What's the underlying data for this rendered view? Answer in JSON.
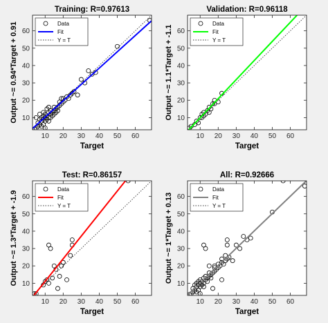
{
  "chart_data": [
    {
      "type": "scatter",
      "title": "Training: R=0.97613",
      "xlabel": "Target",
      "ylabel": "Output ~= 0.94*Target + 0.91",
      "xlim": [
        3,
        69
      ],
      "ylim": [
        3,
        69
      ],
      "xticks": [
        10,
        20,
        30,
        40,
        50,
        60
      ],
      "yticks": [
        10,
        20,
        30,
        40,
        50,
        60
      ],
      "fit": {
        "slope": 0.94,
        "intercept": 0.91,
        "color": "#0000ff"
      },
      "legend": {
        "entries": [
          "Data",
          "Fit",
          "Y = T"
        ],
        "placement": "top-left"
      },
      "points": [
        [
          4,
          3.5
        ],
        [
          5,
          4
        ],
        [
          6,
          5
        ],
        [
          6,
          7
        ],
        [
          7,
          6
        ],
        [
          7,
          9
        ],
        [
          8,
          5
        ],
        [
          8,
          8
        ],
        [
          8,
          10
        ],
        [
          9,
          6
        ],
        [
          9,
          9
        ],
        [
          9,
          11
        ],
        [
          10,
          4
        ],
        [
          10,
          8
        ],
        [
          10,
          10
        ],
        [
          10,
          12
        ],
        [
          11,
          9
        ],
        [
          11,
          11
        ],
        [
          12,
          10
        ],
        [
          12,
          13
        ],
        [
          12,
          8
        ],
        [
          13,
          12
        ],
        [
          13,
          14
        ],
        [
          14,
          11
        ],
        [
          14,
          13
        ],
        [
          15,
          14
        ],
        [
          15,
          16
        ],
        [
          16,
          15
        ],
        [
          16,
          13
        ],
        [
          17,
          16
        ],
        [
          18,
          17
        ],
        [
          18,
          19
        ],
        [
          19,
          18
        ],
        [
          20,
          19
        ],
        [
          20,
          21
        ],
        [
          21,
          20
        ],
        [
          22,
          22
        ],
        [
          23,
          21
        ],
        [
          24,
          23
        ],
        [
          25,
          24
        ],
        [
          26,
          25
        ],
        [
          28,
          23
        ],
        [
          30,
          32
        ],
        [
          32,
          30
        ],
        [
          34,
          37
        ],
        [
          36,
          35
        ],
        [
          38,
          36
        ],
        [
          50,
          51
        ],
        [
          68,
          66
        ],
        [
          5,
          10
        ],
        [
          7,
          12
        ],
        [
          11,
          15
        ],
        [
          13,
          10
        ],
        [
          15,
          12
        ],
        [
          17,
          14
        ],
        [
          19,
          21
        ],
        [
          9,
          13
        ],
        [
          12,
          16
        ]
      ]
    },
    {
      "type": "scatter",
      "title": "Validation: R=0.96118",
      "xlabel": "Target",
      "ylabel": "Output ~= 1.1*Target + -1.1",
      "xlim": [
        3,
        69
      ],
      "ylim": [
        3,
        69
      ],
      "xticks": [
        10,
        20,
        30,
        40,
        50,
        60
      ],
      "yticks": [
        10,
        20,
        30,
        40,
        50,
        60
      ],
      "fit": {
        "slope": 1.1,
        "intercept": -1.1,
        "color": "#00ff00"
      },
      "legend": {
        "entries": [
          "Data",
          "Fit",
          "Y = T"
        ],
        "placement": "top-left"
      },
      "points": [
        [
          4,
          4
        ],
        [
          5,
          5
        ],
        [
          7,
          6
        ],
        [
          8,
          8
        ],
        [
          9,
          7
        ],
        [
          10,
          10
        ],
        [
          11,
          12
        ],
        [
          12,
          11
        ],
        [
          12,
          13
        ],
        [
          13,
          12
        ],
        [
          14,
          14
        ],
        [
          15,
          13
        ],
        [
          16,
          15
        ],
        [
          17,
          18
        ],
        [
          18,
          18
        ],
        [
          18,
          20
        ],
        [
          20,
          19
        ],
        [
          22,
          24
        ],
        [
          15,
          16
        ],
        [
          11,
          10
        ]
      ]
    },
    {
      "type": "scatter",
      "title": "Test: R=0.86157",
      "xlabel": "Target",
      "ylabel": "Output ~= 1.3*Target + -1.9",
      "xlim": [
        3,
        69
      ],
      "ylim": [
        3,
        69
      ],
      "xticks": [
        10,
        20,
        30,
        40,
        50,
        60
      ],
      "yticks": [
        10,
        20,
        30,
        40,
        50,
        60
      ],
      "fit": {
        "slope": 1.3,
        "intercept": -1.9,
        "color": "#ff0000"
      },
      "legend": {
        "entries": [
          "Data",
          "Fit",
          "Y = T"
        ],
        "placement": "top-left"
      },
      "points": [
        [
          4,
          4
        ],
        [
          5,
          4
        ],
        [
          9,
          9
        ],
        [
          10,
          11
        ],
        [
          11,
          12
        ],
        [
          12,
          10
        ],
        [
          12,
          32
        ],
        [
          13,
          30
        ],
        [
          14,
          13
        ],
        [
          15,
          20
        ],
        [
          16,
          18
        ],
        [
          17,
          7
        ],
        [
          18,
          14
        ],
        [
          19,
          20
        ],
        [
          20,
          22
        ],
        [
          22,
          12
        ],
        [
          24,
          26
        ],
        [
          25,
          35
        ],
        [
          25,
          32
        ],
        [
          56,
          69
        ]
      ]
    },
    {
      "type": "scatter",
      "title": "All: R=0.92666",
      "xlabel": "Target",
      "ylabel": "Output ~= 1*Target + 0.13",
      "xlim": [
        3,
        69
      ],
      "ylim": [
        3,
        69
      ],
      "xticks": [
        10,
        20,
        30,
        40,
        50,
        60
      ],
      "yticks": [
        10,
        20,
        30,
        40,
        50,
        60
      ],
      "fit": {
        "slope": 1.0,
        "intercept": 0.13,
        "color": "#808080"
      },
      "legend": {
        "entries": [
          "Data",
          "Fit",
          "Y = T"
        ],
        "placement": "top-left"
      },
      "points": [
        [
          4,
          3.5
        ],
        [
          5,
          4
        ],
        [
          6,
          5
        ],
        [
          6,
          7
        ],
        [
          7,
          6
        ],
        [
          7,
          9
        ],
        [
          8,
          5
        ],
        [
          8,
          8
        ],
        [
          8,
          10
        ],
        [
          9,
          6
        ],
        [
          9,
          9
        ],
        [
          9,
          11
        ],
        [
          10,
          4
        ],
        [
          10,
          8
        ],
        [
          10,
          10
        ],
        [
          10,
          12
        ],
        [
          11,
          9
        ],
        [
          11,
          11
        ],
        [
          12,
          10
        ],
        [
          12,
          13
        ],
        [
          12,
          8
        ],
        [
          13,
          12
        ],
        [
          13,
          14
        ],
        [
          14,
          11
        ],
        [
          14,
          13
        ],
        [
          15,
          14
        ],
        [
          15,
          16
        ],
        [
          16,
          15
        ],
        [
          16,
          13
        ],
        [
          17,
          16
        ],
        [
          18,
          17
        ],
        [
          18,
          19
        ],
        [
          19,
          18
        ],
        [
          20,
          19
        ],
        [
          20,
          21
        ],
        [
          21,
          20
        ],
        [
          22,
          22
        ],
        [
          23,
          21
        ],
        [
          24,
          23
        ],
        [
          25,
          24
        ],
        [
          26,
          25
        ],
        [
          28,
          23
        ],
        [
          30,
          32
        ],
        [
          32,
          30
        ],
        [
          34,
          37
        ],
        [
          36,
          35
        ],
        [
          38,
          36
        ],
        [
          50,
          51
        ],
        [
          68,
          66
        ],
        [
          12,
          32
        ],
        [
          13,
          30
        ],
        [
          15,
          20
        ],
        [
          17,
          7
        ],
        [
          22,
          12
        ],
        [
          25,
          35
        ],
        [
          25,
          32
        ],
        [
          24,
          26
        ],
        [
          56,
          69
        ],
        [
          22,
          24
        ],
        [
          18,
          20
        ]
      ]
    }
  ]
}
